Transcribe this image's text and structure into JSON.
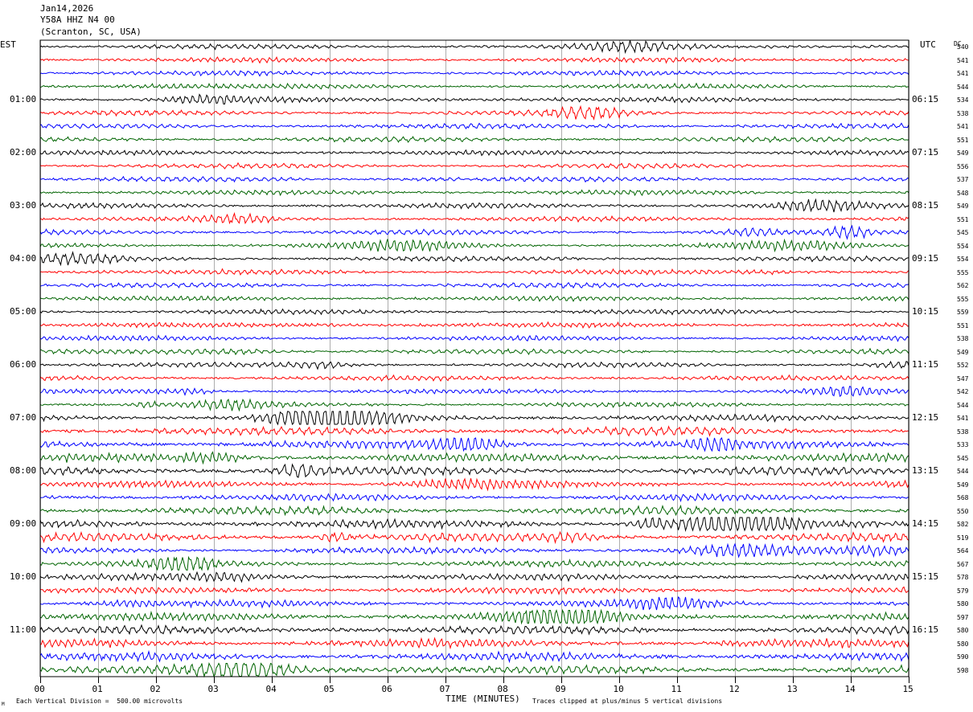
{
  "header": {
    "date": "Jan14,2026",
    "station": "Y58A HHZ N4 00",
    "location": "(Scranton, SC, USA)"
  },
  "labels": {
    "left_tz": "EST",
    "right_tz": "UTC",
    "dc_header": "DC",
    "xlabel": "TIME (MINUTES)",
    "footer_left": "Each Vertical Division =  500.00 microvolts",
    "footer_right": "Traces clipped at plus/minus 5 vertical divisions",
    "corner_mark": "M"
  },
  "chart_data": {
    "type": "line",
    "title": "Jan14,2026",
    "xlabel": "TIME (MINUTES)",
    "ylabel": "",
    "xlim": [
      0,
      15
    ],
    "x_ticks": [
      "00",
      "01",
      "02",
      "03",
      "04",
      "05",
      "06",
      "07",
      "08",
      "09",
      "10",
      "11",
      "12",
      "13",
      "14",
      "15"
    ],
    "grid": true,
    "trace_colors": [
      "#000000",
      "#ff0000",
      "#0000ff",
      "#006400"
    ],
    "left_time_labels": [
      "01:00",
      "02:00",
      "03:00",
      "04:00",
      "05:00",
      "06:00",
      "07:00",
      "08:00",
      "09:00",
      "10:00",
      "11:00"
    ],
    "right_time_labels": [
      "06:15",
      "07:15",
      "08:15",
      "09:15",
      "10:15",
      "11:15",
      "12:15",
      "13:15",
      "14:15",
      "15:15",
      "16:15"
    ],
    "dc_offsets": [
      "540",
      "541",
      "541",
      "544",
      "534",
      "538",
      "541",
      "551",
      "549",
      "556",
      "537",
      "548",
      "549",
      "551",
      "545",
      "554",
      "554",
      "555",
      "562",
      "555",
      "559",
      "551",
      "538",
      "549",
      "552",
      "547",
      "542",
      "544",
      "541",
      "538",
      "533",
      "545",
      "544",
      "549",
      "568",
      "550",
      "582",
      "519",
      "564",
      "567",
      "578",
      "579",
      "580",
      "597",
      "580",
      "580",
      "590",
      "598"
    ],
    "trace_amplitude_levels": [
      3,
      3,
      3,
      3,
      3,
      3,
      3,
      3,
      3,
      3,
      3,
      3,
      3,
      3,
      3,
      3,
      3,
      3,
      3,
      3,
      3,
      3,
      3,
      3,
      3,
      3,
      3,
      3,
      4,
      5,
      5,
      5,
      5,
      4,
      4,
      5,
      5,
      5,
      4,
      4,
      4,
      4,
      4,
      5,
      5,
      5,
      5,
      5
    ]
  }
}
